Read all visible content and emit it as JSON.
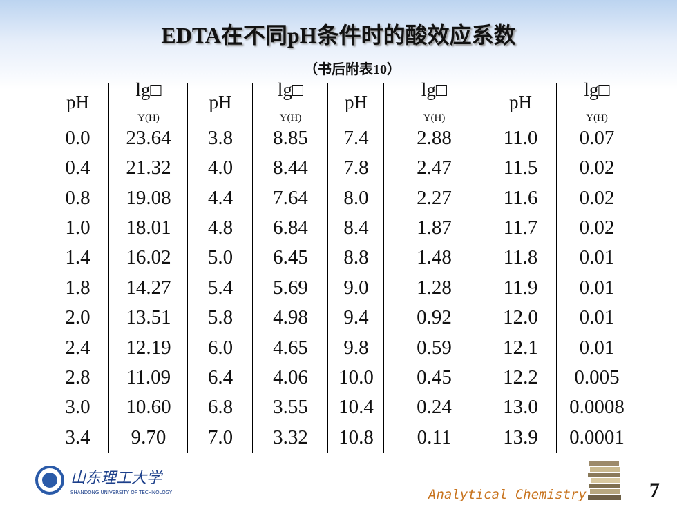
{
  "header": {
    "title": "EDTA在不同pH条件时的酸效应系数",
    "subtitle": "（书后附表10）"
  },
  "table": {
    "columns": [
      {
        "main": "pH"
      },
      {
        "main": "lg□",
        "sub": "Y(H)"
      },
      {
        "main": "pH"
      },
      {
        "main": "lg□",
        "sub": "Y(H)"
      },
      {
        "main": "pH"
      },
      {
        "main": "lg□",
        "sub": "Y(H)"
      },
      {
        "main": "pH"
      },
      {
        "main": "lg□",
        "sub": "Y(H)"
      }
    ],
    "rows": [
      [
        "0.0",
        "23.64",
        "3.8",
        "8.85",
        "7.4",
        "2.88",
        "11.0",
        "0.07"
      ],
      [
        "0.4",
        "21.32",
        "4.0",
        "8.44",
        "7.8",
        "2.47",
        "11.5",
        "0.02"
      ],
      [
        "0.8",
        "19.08",
        "4.4",
        "7.64",
        "8.0",
        "2.27",
        "11.6",
        "0.02"
      ],
      [
        "1.0",
        "18.01",
        "4.8",
        "6.84",
        "8.4",
        "1.87",
        "11.7",
        "0.02"
      ],
      [
        "1.4",
        "16.02",
        "5.0",
        "6.45",
        "8.8",
        "1.48",
        "11.8",
        "0.01"
      ],
      [
        "1.8",
        "14.27",
        "5.4",
        "5.69",
        "9.0",
        "1.28",
        "11.9",
        "0.01"
      ],
      [
        "2.0",
        "13.51",
        "5.8",
        "4.98",
        "9.4",
        "0.92",
        "12.0",
        "0.01"
      ],
      [
        "2.4",
        "12.19",
        "6.0",
        "4.65",
        "9.8",
        "0.59",
        "12.1",
        "0.01"
      ],
      [
        "2.8",
        "11.09",
        "6.4",
        "4.06",
        "10.0",
        "0.45",
        "12.2",
        "0.005"
      ],
      [
        "3.0",
        "10.60",
        "6.8",
        "3.55",
        "10.4",
        "0.24",
        "13.0",
        "0.0008"
      ],
      [
        "3.4",
        "9.70",
        "7.0",
        "3.32",
        "10.8",
        "0.11",
        "13.9",
        "0.0001"
      ]
    ]
  },
  "footer": {
    "logo_text": "山东理工大学",
    "logo_subtext": "SHANDONG UNIVERSITY OF TECHNOLOGY",
    "course": "Analytical Chemistry",
    "page": "7"
  }
}
